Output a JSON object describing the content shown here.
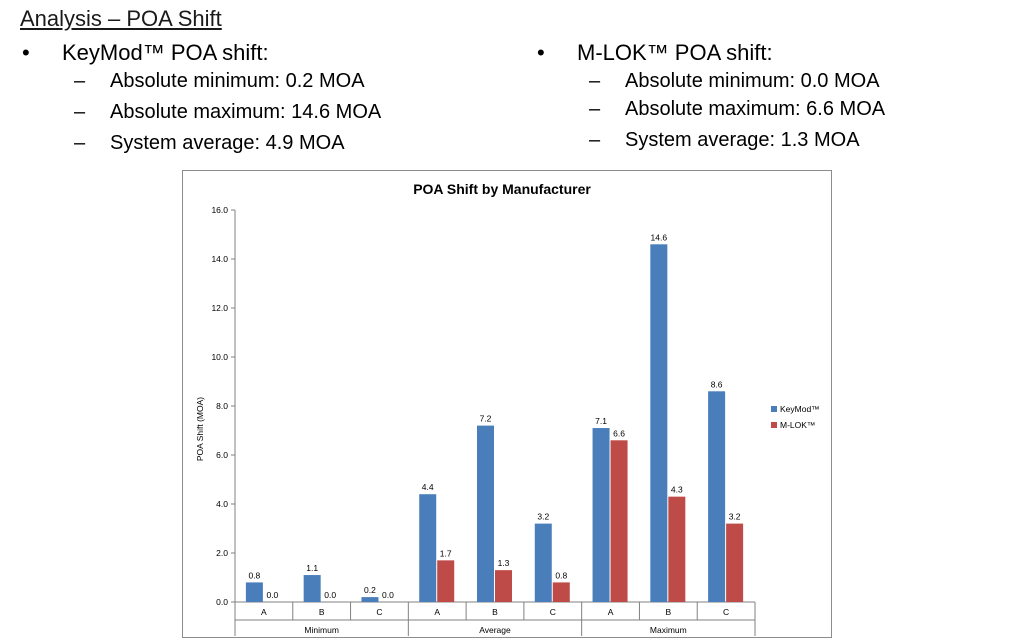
{
  "slide": {
    "title": "Analysis – POA Shift",
    "bullet_mark": "•",
    "dash_mark": "–",
    "left": {
      "heading": "KeyMod™ POA shift:",
      "items": [
        "Absolute minimum: 0.2 MOA",
        "Absolute maximum: 14.6 MOA",
        "System average: 4.9 MOA"
      ]
    },
    "right": {
      "heading": "M-LOK™ POA shift:",
      "items": [
        "Absolute minimum: 0.0 MOA",
        "Absolute maximum: 6.6 MOA",
        "System average: 1.3 MOA"
      ]
    }
  },
  "chart_data": {
    "type": "bar",
    "title": "POA Shift by Manufacturer",
    "ylabel": "POA Shift (MOA)",
    "xlabel": "",
    "ylim": [
      0,
      16
    ],
    "yticks": [
      "0.0",
      "2.0",
      "4.0",
      "6.0",
      "8.0",
      "10.0",
      "12.0",
      "14.0",
      "16.0"
    ],
    "grid": false,
    "legend": "right",
    "categories": [
      "A",
      "B",
      "C",
      "A",
      "B",
      "C",
      "A",
      "B",
      "C"
    ],
    "groups": [
      {
        "label": "Minimum",
        "span": 3
      },
      {
        "label": "Average",
        "span": 3
      },
      {
        "label": "Maximum",
        "span": 3
      }
    ],
    "series": [
      {
        "name": "KeyMod™",
        "color": "#4a7ebb",
        "values": [
          0.8,
          1.1,
          0.2,
          4.4,
          7.2,
          3.2,
          7.1,
          14.6,
          8.6
        ],
        "labels": [
          "0.8",
          "1.1",
          "0.2",
          "4.4",
          "7.2",
          "3.2",
          "7.1",
          "14.6",
          "8.6"
        ]
      },
      {
        "name": "M-LOK™",
        "color": "#be4b48",
        "values": [
          0.0,
          0.0,
          0.0,
          1.7,
          1.3,
          0.8,
          6.6,
          4.3,
          3.2
        ],
        "labels": [
          "0.0",
          "0.0",
          "0.0",
          "1.7",
          "1.3",
          "0.8",
          "6.6",
          "4.3",
          "3.2"
        ]
      }
    ]
  }
}
